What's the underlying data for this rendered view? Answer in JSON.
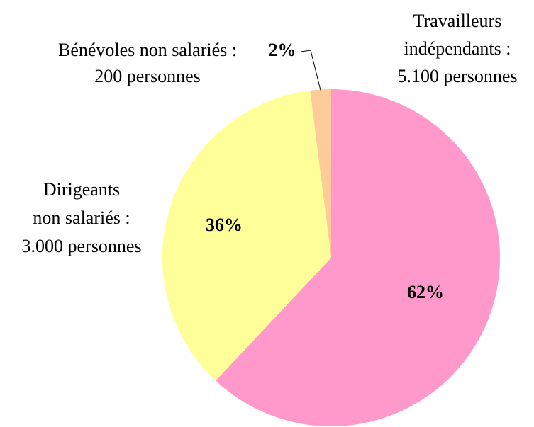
{
  "chart_data": {
    "type": "pie",
    "categories": [
      [
        "Travailleurs",
        "indépendants :",
        "5.100 personnes"
      ],
      [
        "Dirigeants",
        "non salariés :",
        "3.000 personnes"
      ],
      [
        "Bénévoles non salariés :",
        "200 personnes"
      ]
    ],
    "values": [
      62,
      36,
      2
    ],
    "value_labels": [
      "62%",
      "36%",
      "2%"
    ],
    "colors": [
      "#ff99cc",
      "#ffff99",
      "#ffcc99"
    ]
  }
}
